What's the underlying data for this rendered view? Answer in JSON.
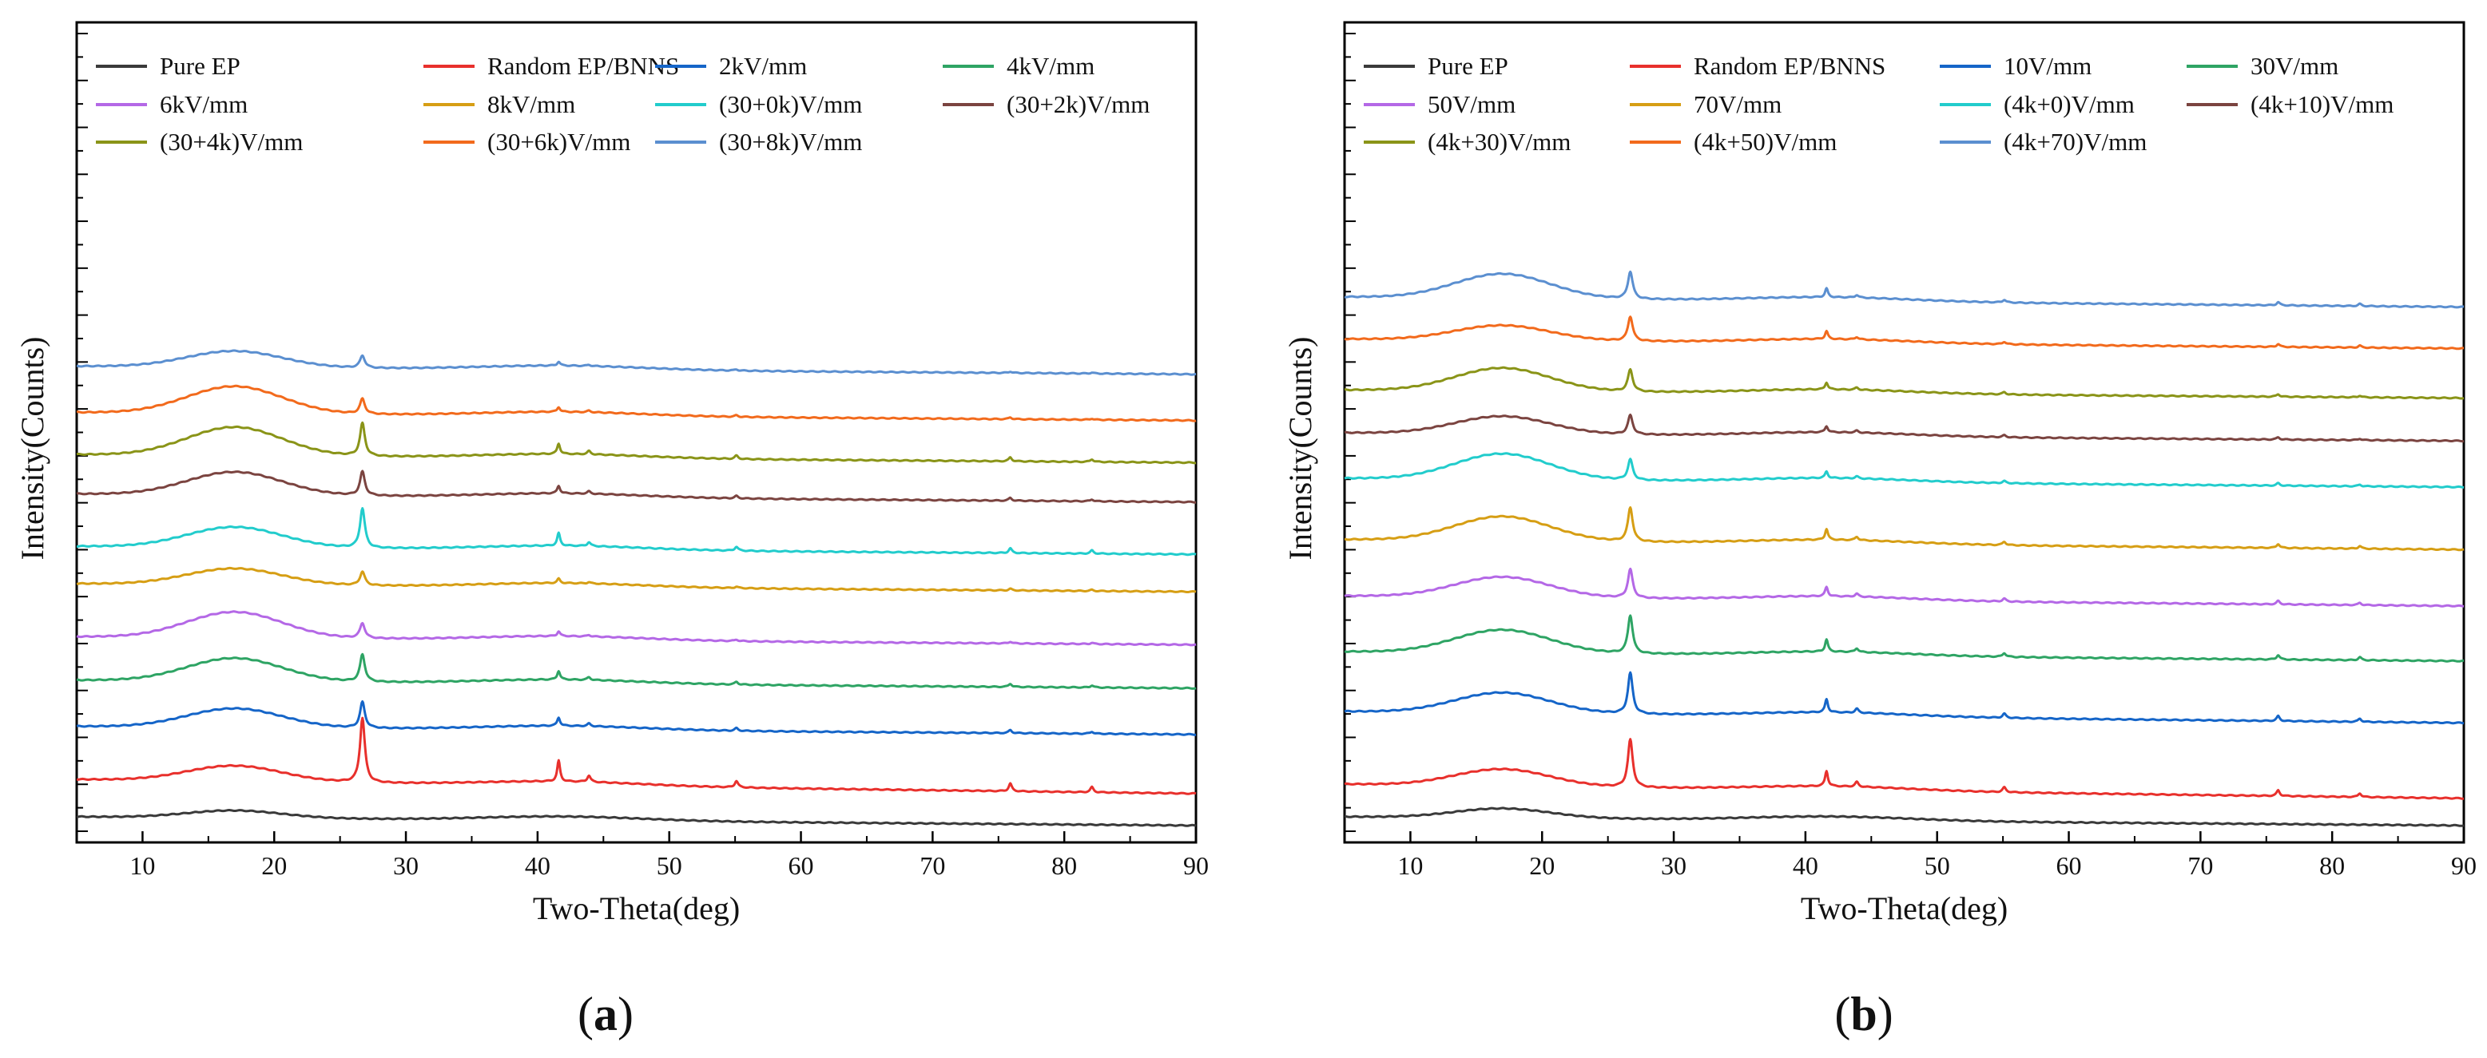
{
  "chart_data": [
    {
      "panel_label": "(a)",
      "type": "line",
      "xlabel": "Two-Theta(deg)",
      "ylabel": "Intensity(Counts)",
      "xlim": [
        5,
        90
      ],
      "xticks": [
        10,
        20,
        30,
        40,
        50,
        60,
        70,
        80,
        90
      ],
      "yticks_shown": false,
      "series": [
        {
          "name": "Pure EP",
          "color": "#3a3a3a",
          "offset": 0.0,
          "tail": -0.01,
          "hump": 0.11,
          "bnns": 0.0
        },
        {
          "name": "Random EP/BNNS",
          "color": "#e8302c",
          "offset": 0.52,
          "tail": -0.09,
          "hump": 0.23,
          "bnns": 0.95
        },
        {
          "name": "2kV/mm",
          "color": "#1565c8",
          "offset": 1.3,
          "tail": 0.0,
          "hump": 0.28,
          "bnns": 0.38
        },
        {
          "name": "4kV/mm",
          "color": "#2ea464",
          "offset": 1.98,
          "tail": 0.0,
          "hump": 0.34,
          "bnns": 0.4
        },
        {
          "name": "6kV/mm",
          "color": "#b468e6",
          "offset": 2.62,
          "tail": 0.0,
          "hump": 0.38,
          "bnns": 0.22
        },
        {
          "name": "8kV/mm",
          "color": "#d69e14",
          "offset": 3.4,
          "tail": 0.0,
          "hump": 0.24,
          "bnns": 0.2
        },
        {
          "name": "(30+0k)V/mm",
          "color": "#22cccc",
          "offset": 3.95,
          "tail": 0.0,
          "hump": 0.3,
          "bnns": 0.58
        },
        {
          "name": "(30+2k)V/mm",
          "color": "#7b4440",
          "offset": 4.72,
          "tail": 0.0,
          "hump": 0.34,
          "bnns": 0.35
        },
        {
          "name": "(30+4k)V/mm",
          "color": "#8a9418",
          "offset": 5.3,
          "tail": 0.0,
          "hump": 0.42,
          "bnns": 0.48
        },
        {
          "name": "(30+6k)V/mm",
          "color": "#f26a1c",
          "offset": 5.92,
          "tail": 0.0,
          "hump": 0.4,
          "bnns": 0.22
        },
        {
          "name": "(30+8k)V/mm",
          "color": "#5b8fd0",
          "offset": 6.6,
          "tail": 0.0,
          "hump": 0.24,
          "bnns": 0.18
        }
      ]
    },
    {
      "panel_label": "(b)",
      "type": "line",
      "xlabel": "Two-Theta(deg)",
      "ylabel": "Intensity(Counts)",
      "xlim": [
        5,
        90
      ],
      "xticks": [
        10,
        20,
        30,
        40,
        50,
        60,
        70,
        80,
        90
      ],
      "yticks_shown": false,
      "series": [
        {
          "name": "Pure EP",
          "color": "#3a3a3a",
          "offset": 0.0,
          "tail": -0.01,
          "hump": 0.14,
          "bnns": 0.0
        },
        {
          "name": "Random EP/BNNS",
          "color": "#e8302c",
          "offset": 0.45,
          "tail": -0.09,
          "hump": 0.25,
          "bnns": 0.7
        },
        {
          "name": "10V/mm",
          "color": "#1565c8",
          "offset": 1.52,
          "tail": -0.05,
          "hump": 0.3,
          "bnns": 0.6
        },
        {
          "name": "30V/mm",
          "color": "#2ea464",
          "offset": 2.4,
          "tail": -0.02,
          "hump": 0.34,
          "bnns": 0.56
        },
        {
          "name": "50V/mm",
          "color": "#b468e6",
          "offset": 3.22,
          "tail": -0.03,
          "hump": 0.3,
          "bnns": 0.42
        },
        {
          "name": "70V/mm",
          "color": "#d69e14",
          "offset": 4.05,
          "tail": -0.03,
          "hump": 0.36,
          "bnns": 0.5
        },
        {
          "name": "(4k+0)V/mm",
          "color": "#22cccc",
          "offset": 4.95,
          "tail": -0.01,
          "hump": 0.38,
          "bnns": 0.3
        },
        {
          "name": "(4k+10)V/mm",
          "color": "#7b4440",
          "offset": 5.62,
          "tail": 0.0,
          "hump": 0.26,
          "bnns": 0.28
        },
        {
          "name": "(4k+30)V/mm",
          "color": "#8a9418",
          "offset": 6.25,
          "tail": 0.0,
          "hump": 0.34,
          "bnns": 0.32
        },
        {
          "name": "(4k+50)V/mm",
          "color": "#f26a1c",
          "offset": 7.0,
          "tail": -0.02,
          "hump": 0.22,
          "bnns": 0.36
        },
        {
          "name": "(4k+70)V/mm",
          "color": "#5b8fd0",
          "offset": 7.62,
          "tail": -0.03,
          "hump": 0.36,
          "bnns": 0.4
        }
      ]
    }
  ]
}
